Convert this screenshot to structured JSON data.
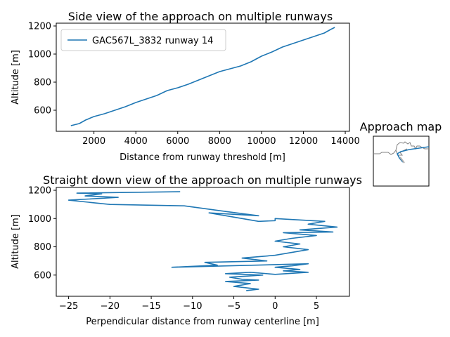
{
  "colors": {
    "series": "#1f77b4",
    "map_line": "#808080",
    "axes": "#000000"
  },
  "chart_data": [
    {
      "type": "line",
      "title": "Side view of the approach on multiple runways",
      "xlabel": "Distance from runway threshold [m]",
      "ylabel": "Altitude [m]",
      "xlim": [
        200,
        14200
      ],
      "ylim": [
        450,
        1220
      ],
      "xticks": [
        2000,
        4000,
        6000,
        8000,
        10000,
        12000,
        14000
      ],
      "yticks": [
        600,
        800,
        1000,
        1200
      ],
      "legend": "top-left",
      "series": [
        {
          "name": "GAC567L_3832 runway 14",
          "x": [
            900,
            1300,
            1600,
            2000,
            2500,
            3000,
            3500,
            4000,
            4500,
            5000,
            5500,
            6000,
            6500,
            7000,
            7500,
            8000,
            8500,
            9000,
            9500,
            10000,
            10500,
            11000,
            11500,
            12000,
            12500,
            13000,
            13300,
            13500
          ],
          "y": [
            490,
            505,
            530,
            555,
            575,
            600,
            625,
            655,
            680,
            705,
            740,
            760,
            785,
            815,
            845,
            875,
            895,
            915,
            945,
            985,
            1015,
            1050,
            1075,
            1100,
            1125,
            1150,
            1175,
            1190
          ]
        }
      ]
    },
    {
      "type": "line",
      "title": "Straight down view of the approach on multiple runways",
      "xlabel": "Perpendicular distance from runway centerline [m]",
      "ylabel": "Altitude [m]",
      "xlim": [
        -26.5,
        9
      ],
      "ylim": [
        450,
        1220
      ],
      "xticks": [
        -25,
        -20,
        -15,
        -10,
        -5,
        0,
        5
      ],
      "yticks": [
        600,
        800,
        1000,
        1200
      ],
      "series": [
        {
          "name": "GAC567L_3832 runway 14",
          "x": [
            -3.5,
            -2,
            -5,
            -3,
            -6,
            -2,
            -4,
            -5.5,
            -1.5,
            -6,
            -3,
            0,
            4,
            1,
            3,
            0,
            2,
            4,
            -12.5,
            -7,
            -8.5,
            -1,
            -4,
            0,
            2,
            4,
            1,
            3,
            0,
            2,
            5,
            1,
            7,
            3,
            7.5,
            4,
            6,
            0,
            0,
            -2,
            -8,
            -2,
            -6,
            -11,
            -20,
            -25,
            -19,
            -23,
            -21,
            -24,
            -11.5
          ],
          "y": [
            490,
            500,
            520,
            540,
            555,
            565,
            570,
            585,
            600,
            610,
            620,
            605,
            620,
            630,
            640,
            655,
            665,
            680,
            655,
            670,
            690,
            700,
            720,
            740,
            760,
            780,
            800,
            820,
            840,
            860,
            880,
            900,
            905,
            920,
            940,
            960,
            980,
            1000,
            985,
            980,
            1040,
            1020,
            1050,
            1090,
            1100,
            1130,
            1150,
            1160,
            1175,
            1180,
            1190
          ]
        }
      ]
    }
  ],
  "inset_map": {
    "title": "Approach map"
  }
}
